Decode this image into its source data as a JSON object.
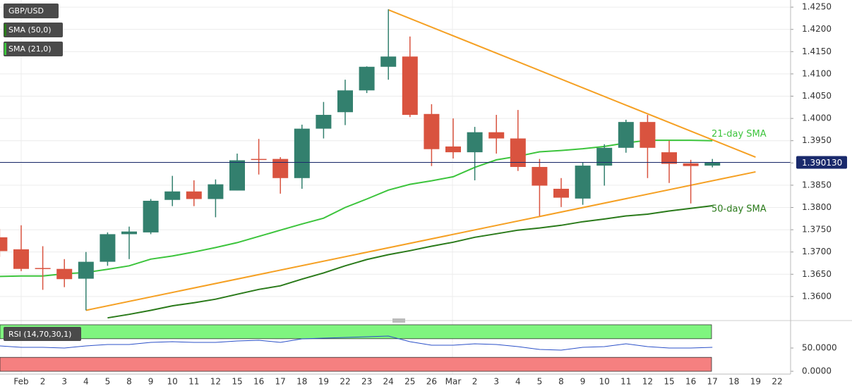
{
  "chart_data": {
    "type": "candlestick",
    "symbol": "GBP/USD",
    "categories": [
      null,
      "Feb",
      "2",
      "3",
      "4",
      "5",
      "8",
      "9",
      "10",
      "11",
      "12",
      "15",
      "16",
      "17",
      "18",
      "19",
      "22",
      "23",
      "24",
      "25",
      "26",
      "Mar",
      "2",
      "3",
      "4",
      "5",
      "8",
      "9",
      "10",
      "11",
      "12",
      "15",
      "16",
      "17",
      "18",
      "19",
      "22"
    ],
    "open": [
      1.3733,
      1.3706,
      1.3664,
      1.3662,
      1.364,
      1.3678,
      1.374,
      1.3744,
      1.3817,
      1.3836,
      1.3819,
      1.3838,
      1.3909,
      1.3909,
      1.3866,
      1.3977,
      1.4014,
      1.4063,
      1.4116,
      1.4139,
      1.401,
      1.3937,
      1.3924,
      1.3969,
      1.3955,
      1.3891,
      1.3842,
      1.382,
      1.3894,
      1.3934,
      1.3992,
      1.3924,
      1.3899,
      1.3894,
      null,
      null,
      null
    ],
    "high": [
      1.3752,
      1.376,
      1.3713,
      1.3684,
      1.37,
      1.3744,
      1.3757,
      1.3819,
      1.3871,
      1.3861,
      1.3863,
      1.3921,
      1.3954,
      1.3913,
      1.3986,
      1.4037,
      1.4087,
      1.4117,
      1.4245,
      1.4184,
      1.4032,
      1.4,
      1.3981,
      1.4008,
      1.4019,
      1.3909,
      1.3866,
      1.3902,
      1.3942,
      1.3997,
      1.4008,
      1.395,
      1.3907,
      1.3909,
      null,
      null,
      null
    ],
    "low": [
      1.3689,
      1.3657,
      1.3615,
      1.3621,
      1.3569,
      1.3669,
      1.3684,
      1.374,
      1.3803,
      1.3803,
      1.3778,
      1.3838,
      1.3874,
      1.3831,
      1.3842,
      1.3955,
      1.3985,
      1.4057,
      1.4087,
      1.4003,
      1.3893,
      1.391,
      1.3861,
      1.3921,
      1.3882,
      1.3781,
      1.3801,
      1.3806,
      1.3849,
      1.3923,
      1.3866,
      1.3855,
      1.3809,
      1.389,
      null,
      null,
      null
    ],
    "close": [
      1.3702,
      1.3662,
      1.3662,
      1.3639,
      1.3678,
      1.374,
      1.3746,
      1.3815,
      1.3836,
      1.3819,
      1.3852,
      1.3906,
      1.3907,
      1.3866,
      1.3977,
      1.4008,
      1.4063,
      1.4116,
      1.4139,
      1.4008,
      1.3931,
      1.3924,
      1.3969,
      1.3955,
      1.3891,
      1.3849,
      1.3822,
      1.3894,
      1.3934,
      1.3992,
      1.3934,
      1.3898,
      1.3893,
      1.3901,
      null,
      null,
      null
    ],
    "up_color": "#33806e",
    "down_color": "#d9533f",
    "ylim": [
      1.3546,
      1.4266
    ],
    "yticks": [
      {
        "value": 1.425,
        "label": "1.4250"
      },
      {
        "value": 1.42,
        "label": "1.4200"
      },
      {
        "value": 1.415,
        "label": "1.4150"
      },
      {
        "value": 1.41,
        "label": "1.4100"
      },
      {
        "value": 1.405,
        "label": "1.4050"
      },
      {
        "value": 1.4,
        "label": "1.4000"
      },
      {
        "value": 1.395,
        "label": "1.3950"
      },
      {
        "value": 1.39,
        "label": "1.3900"
      },
      {
        "value": 1.385,
        "label": "1.3850"
      },
      {
        "value": 1.38,
        "label": "1.3800"
      },
      {
        "value": 1.375,
        "label": "1.3750"
      },
      {
        "value": 1.37,
        "label": "1.3700"
      },
      {
        "value": 1.365,
        "label": "1.3650"
      },
      {
        "value": 1.36,
        "label": "1.3600"
      }
    ],
    "last_price": {
      "value": 1.39013,
      "label": "1.390130"
    },
    "last_price_color": "#1a2a6c",
    "series": [
      {
        "name": "21-day SMA",
        "legend_label": "SMA (21,0)",
        "color": "#3cc43c",
        "values": [
          1.3645,
          1.3646,
          1.3646,
          1.3651,
          1.3654,
          1.3661,
          1.3669,
          1.3684,
          1.3691,
          1.37,
          1.371,
          1.3721,
          1.3735,
          1.3749,
          1.3763,
          1.3776,
          1.38,
          1.3819,
          1.3839,
          1.3852,
          1.386,
          1.3869,
          1.389,
          1.3907,
          1.3915,
          1.3925,
          1.3928,
          1.3932,
          1.3937,
          1.3945,
          1.3951,
          1.3951,
          1.3951,
          1.395,
          null,
          null,
          null
        ]
      },
      {
        "name": "50-day SMA",
        "legend_label": "SMA (50,0)",
        "color": "#2a7a1a",
        "values": [
          null,
          null,
          null,
          null,
          null,
          1.3552,
          1.356,
          1.3569,
          1.3579,
          1.3586,
          1.3594,
          1.3605,
          1.3616,
          1.3624,
          1.3639,
          1.3653,
          1.3669,
          1.3683,
          1.3694,
          1.3703,
          1.3713,
          1.3722,
          1.3733,
          1.3741,
          1.3749,
          1.3754,
          1.376,
          1.3768,
          1.3774,
          1.3781,
          1.3785,
          1.3792,
          1.3798,
          1.3804,
          null,
          null,
          null
        ]
      }
    ],
    "trendlines": [
      {
        "color": "#f5a023",
        "x": [
          18,
          35
        ],
        "y": [
          1.4244,
          1.3913
        ]
      },
      {
        "color": "#f5a023",
        "x": [
          4,
          35
        ],
        "y": [
          1.3569,
          1.388
        ]
      }
    ],
    "indicator": {
      "title": "RSI (14,70,30,1)",
      "color": "#2b50c8",
      "upper": 70,
      "lower": 30,
      "upper_color": "#7ff57f",
      "lower_color": "#f58080",
      "ylim": [
        -4.5,
        101.5
      ],
      "yticks": [
        {
          "value": 50,
          "label": "50.0000"
        },
        {
          "value": 0,
          "label": "0.0000"
        }
      ],
      "values": [
        54.5,
        51.5,
        51.5,
        50,
        54.5,
        57.6,
        57.6,
        62.1,
        63.6,
        62.1,
        62.1,
        65.2,
        66.7,
        62.1,
        69.7,
        71.2,
        72.7,
        74.2,
        75.8,
        63.6,
        56.1,
        56.1,
        59.1,
        57.6,
        53,
        47,
        45.5,
        51.5,
        53,
        59.1,
        53,
        50,
        50,
        51.5,
        null,
        null,
        null
      ]
    }
  }
}
